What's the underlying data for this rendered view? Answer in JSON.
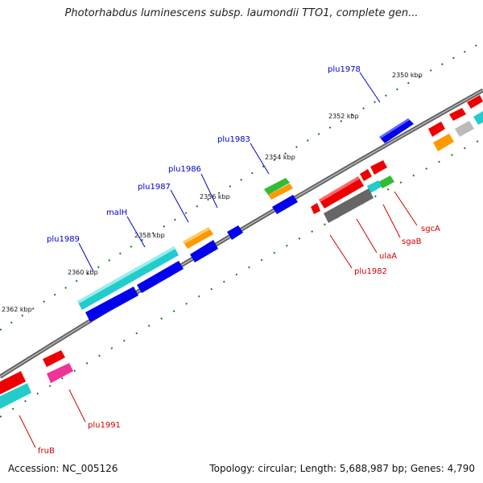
{
  "title": "Photorhabdus luminescens subsp. laumondii TTO1, complete gen...",
  "footer": {
    "accession": "Accession: NC_005126",
    "topology": "Topology: circular; Length: 5,688,987 bp; Genes: 4,790"
  },
  "ticks": [
    "2350 kbp",
    "2352 kbp",
    "2354 kbp",
    "2356 kbp",
    "2358 kbp",
    "2360 kbp",
    "2362 kbp"
  ],
  "gene_labels_outer": [
    "plu1978",
    "plu1983",
    "plu1986",
    "plu1987",
    "malH",
    "plu1989"
  ],
  "gene_labels_inner": [
    "sgcA",
    "sgaB",
    "ulaA",
    "plu1982",
    "plu1991",
    "fruB"
  ],
  "colors": {
    "forward_label": "#0000cc",
    "reverse_label": "#cc0000",
    "backbone": "#888888",
    "tick": "#1a7a1a",
    "blue": "#0000ee",
    "cyan": "#22cccc",
    "orange": "#ff9900",
    "green": "#33bb33",
    "red": "#ee0000",
    "magenta": "#ee3399",
    "gray": "#666666",
    "lightgray": "#bbbbbb"
  }
}
